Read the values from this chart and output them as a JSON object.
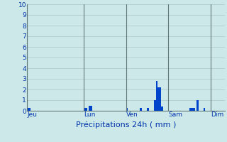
{
  "title": "Précipitations 24h ( mm )",
  "ylim": [
    0,
    10
  ],
  "yticks": [
    0,
    1,
    2,
    3,
    4,
    5,
    6,
    7,
    8,
    9,
    10
  ],
  "background_color": "#cce8e8",
  "bar_color": "#0044cc",
  "grid_color": "#aac8c8",
  "sep_color": "#607878",
  "day_labels": [
    "Jeu",
    "Lun",
    "Ven",
    "Sam",
    "Dim"
  ],
  "day_sep_positions": [
    0,
    32,
    56,
    80,
    104
  ],
  "n_bars": 112,
  "bar_values": [
    0.3,
    0.3,
    0,
    0,
    0,
    0,
    0,
    0,
    0,
    0,
    0,
    0,
    0,
    0,
    0,
    0,
    0,
    0,
    0,
    0,
    0,
    0,
    0,
    0,
    0,
    0,
    0,
    0,
    0,
    0,
    0,
    0,
    0.3,
    0.3,
    0,
    0.5,
    0.5,
    0,
    0,
    0,
    0,
    0,
    0,
    0,
    0,
    0,
    0,
    0,
    0,
    0,
    0,
    0,
    0,
    0,
    0,
    0,
    0.3,
    0,
    0,
    0,
    0,
    0,
    0,
    0,
    0.3,
    0,
    0,
    0,
    0.3,
    0,
    0,
    0,
    1.0,
    2.8,
    2.2,
    2.2,
    0.4,
    0,
    0,
    0,
    0,
    0,
    0,
    0,
    0,
    0,
    0,
    0,
    0,
    0,
    0,
    0,
    0.3,
    0.3,
    0.3,
    0,
    1.0,
    0,
    0,
    0,
    0.3,
    0,
    0,
    0,
    0,
    0,
    0,
    0,
    0,
    0,
    0,
    0
  ]
}
